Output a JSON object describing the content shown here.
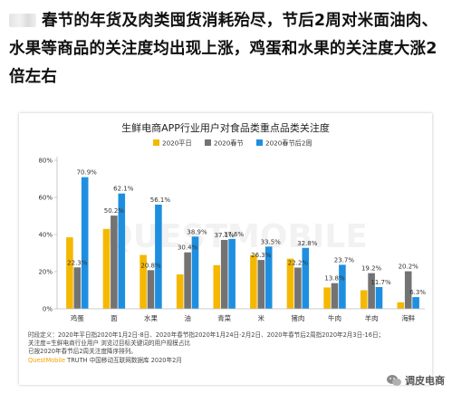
{
  "headline": {
    "text": "春节的年货及肉类囤货消耗殆尽，节后2周对米面油肉、水果等商品的关注度均出现上涨，鸡蛋和水果的关注度大涨2倍左右"
  },
  "footnotes": {
    "line1": "时段定义：2020年平日指2020年1月2日-8日、2020年春节指2020年1月24日-2月2日、2020年春节后2周指2020年2月3日-16日；",
    "line2": "关注度=生鲜电商行业用户 浏览过目标关键词的用户规模占比",
    "line3": "已按2020年春节后2周关注度降序排列。",
    "source_brand": "QuestMobile",
    "source_rest": " TRUTH 中国移动互联网数据库 2020年2月"
  },
  "watermark": {
    "center": "QUESTMOBILE",
    "corner": "调皮电商"
  },
  "colors": {
    "series": [
      "#F5B800",
      "#737373",
      "#1E8FE0"
    ],
    "axis": "#bbbbbb",
    "text": "#333333",
    "source_brand": "#F5A000"
  },
  "chart_data": {
    "type": "bar",
    "title": "生鲜电商APP行业用户对食品类重点品类关注度",
    "categories": [
      "鸡蛋",
      "面",
      "水果",
      "油",
      "青菜",
      "米",
      "猪肉",
      "牛肉",
      "羊肉",
      "海鲜"
    ],
    "series": [
      {
        "name": "2020平日",
        "values": [
          38.5,
          43.0,
          29.0,
          18.5,
          23.5,
          29.0,
          27.0,
          11.5,
          10.0,
          3.5
        ]
      },
      {
        "name": "2020春节",
        "values": [
          22.3,
          50.2,
          20.8,
          30.4,
          37.1,
          26.3,
          22.2,
          13.8,
          19.2,
          20.2
        ]
      },
      {
        "name": "2020春节后2周",
        "values": [
          70.9,
          62.1,
          56.1,
          38.9,
          37.6,
          33.5,
          32.8,
          23.7,
          11.7,
          6.3
        ]
      }
    ],
    "labeled_values": [
      [
        null,
        22.3,
        70.9
      ],
      [
        null,
        50.2,
        62.1
      ],
      [
        null,
        20.8,
        56.1
      ],
      [
        null,
        30.4,
        38.9
      ],
      [
        null,
        37.1,
        37.6
      ],
      [
        null,
        26.3,
        33.5
      ],
      [
        null,
        22.2,
        32.8
      ],
      [
        null,
        13.8,
        23.7
      ],
      [
        null,
        19.2,
        11.7
      ],
      [
        null,
        20.2,
        6.3
      ]
    ],
    "value_suffix": "%",
    "ylim": [
      0,
      80
    ],
    "y_ticks": [
      "0%",
      "20%",
      "40%",
      "60%",
      "80%"
    ],
    "y_tick_values": [
      0,
      20,
      40,
      60,
      80
    ],
    "grid": false,
    "legend_position": "top-center"
  }
}
